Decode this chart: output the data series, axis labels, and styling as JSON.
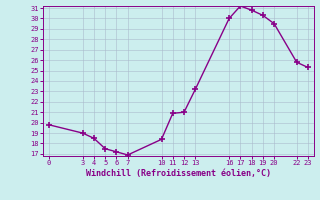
{
  "x": [
    0,
    3,
    4,
    5,
    6,
    7,
    10,
    11,
    12,
    13,
    16,
    17,
    18,
    19,
    20,
    22,
    23
  ],
  "y": [
    19.8,
    19.0,
    18.5,
    17.5,
    17.2,
    16.9,
    18.4,
    20.9,
    21.0,
    23.2,
    30.0,
    31.2,
    30.8,
    30.3,
    29.5,
    25.8,
    25.3
  ],
  "color": "#880088",
  "bg_color": "#cceeee",
  "grid_color": "#aabbcc",
  "ylim": [
    17,
    31
  ],
  "xlim": [
    -0.5,
    23.5
  ],
  "yticks": [
    17,
    18,
    19,
    20,
    21,
    22,
    23,
    24,
    25,
    26,
    27,
    28,
    29,
    30,
    31
  ],
  "xticks": [
    0,
    3,
    4,
    5,
    6,
    7,
    10,
    11,
    12,
    13,
    16,
    17,
    18,
    19,
    20,
    22,
    23
  ],
  "xlabel": "Windchill (Refroidissement éolien,°C)",
  "marker": "+",
  "markersize": 5,
  "linewidth": 1.0
}
